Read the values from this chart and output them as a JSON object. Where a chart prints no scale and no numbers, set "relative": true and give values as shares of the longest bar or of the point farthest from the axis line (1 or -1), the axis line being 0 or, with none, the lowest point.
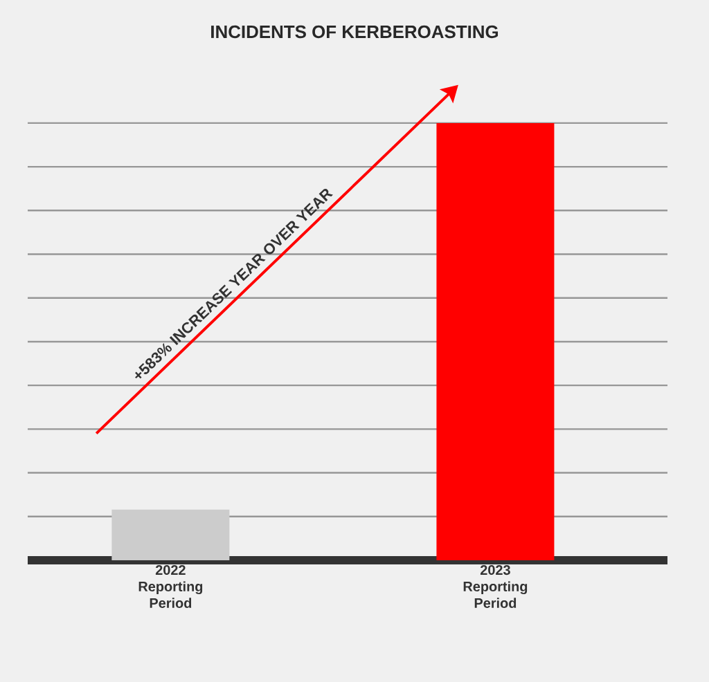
{
  "chart_data": {
    "type": "bar",
    "title": "INCIDENTS OF KERBEROASTING",
    "categories": [
      "2022 Reporting Period",
      "2023 Reporting Period"
    ],
    "values": [
      0.116,
      1
    ],
    "colors": [
      "#cccccc",
      "#ff0000"
    ],
    "relative": true,
    "grid": "y",
    "annotations": [
      "+583% INCREASE YEAR OVER YEAR"
    ]
  }
}
